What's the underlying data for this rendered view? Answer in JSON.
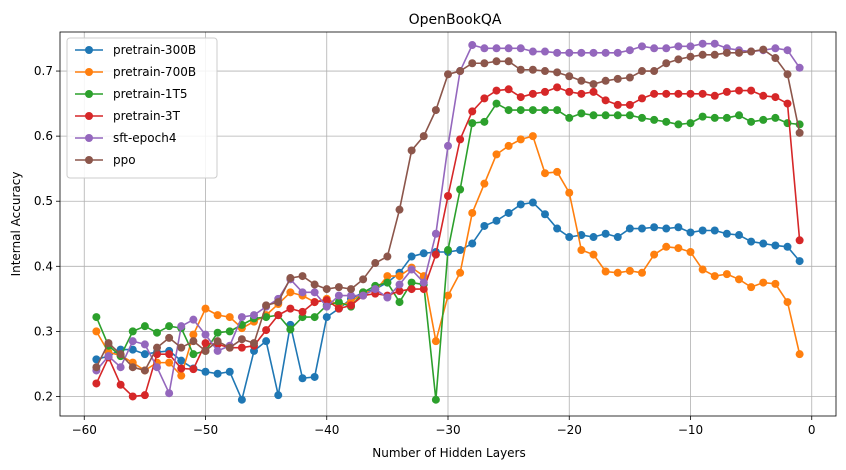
{
  "chart_data": {
    "type": "line",
    "title": "OpenBookQA",
    "xlabel": "Number of Hidden Layers",
    "ylabel": "Internal Accuracy",
    "xlim": [
      -62,
      2
    ],
    "ylim": [
      0.17,
      0.76
    ],
    "xticks": [
      -60,
      -50,
      -40,
      -30,
      -20,
      -10,
      0
    ],
    "yticks": [
      0.2,
      0.3,
      0.4,
      0.5,
      0.6,
      0.7
    ],
    "grid": true,
    "legend_position": "top-left",
    "x": [
      -59,
      -58,
      -57,
      -56,
      -55,
      -54,
      -53,
      -52,
      -51,
      -50,
      -49,
      -48,
      -47,
      -46,
      -45,
      -44,
      -43,
      -42,
      -41,
      -40,
      -39,
      -38,
      -37,
      -36,
      -35,
      -34,
      -33,
      -32,
      -31,
      -30,
      -29,
      -28,
      -27,
      -26,
      -25,
      -24,
      -23,
      -22,
      -21,
      -20,
      -19,
      -18,
      -17,
      -16,
      -15,
      -14,
      -13,
      -12,
      -11,
      -10,
      -9,
      -8,
      -7,
      -6,
      -5,
      -4,
      -3,
      -2,
      -1
    ],
    "series": [
      {
        "name": "pretrain-300B",
        "color": "#1f77b4",
        "values": [
          0.257,
          0.262,
          0.272,
          0.272,
          0.265,
          0.268,
          0.27,
          0.255,
          0.243,
          0.238,
          0.235,
          0.238,
          0.195,
          0.27,
          0.285,
          0.202,
          0.31,
          0.228,
          0.23,
          0.322,
          0.335,
          0.35,
          0.36,
          0.365,
          0.375,
          0.39,
          0.415,
          0.42,
          0.422,
          0.422,
          0.425,
          0.435,
          0.462,
          0.47,
          0.482,
          0.495,
          0.498,
          0.48,
          0.458,
          0.445,
          0.448,
          0.445,
          0.45,
          0.445,
          0.458,
          0.458,
          0.46,
          0.458,
          0.46,
          0.452,
          0.455,
          0.455,
          0.45,
          0.448,
          0.438,
          0.435,
          0.432,
          0.43,
          0.408
        ]
      },
      {
        "name": "pretrain-700B",
        "color": "#ff7f0e",
        "values": [
          0.3,
          0.268,
          0.263,
          0.252,
          0.24,
          0.252,
          0.252,
          0.232,
          0.295,
          0.335,
          0.325,
          0.322,
          0.305,
          0.315,
          0.325,
          0.342,
          0.36,
          0.355,
          0.345,
          0.35,
          0.34,
          0.345,
          0.36,
          0.362,
          0.385,
          0.385,
          0.398,
          0.385,
          0.285,
          0.355,
          0.39,
          0.482,
          0.527,
          0.572,
          0.585,
          0.595,
          0.6,
          0.543,
          0.545,
          0.513,
          0.425,
          0.418,
          0.392,
          0.39,
          0.393,
          0.39,
          0.418,
          0.43,
          0.428,
          0.422,
          0.395,
          0.385,
          0.388,
          0.38,
          0.368,
          0.375,
          0.373,
          0.345,
          0.265
        ]
      },
      {
        "name": "pretrain-1T5",
        "color": "#2ca02c",
        "values": [
          0.322,
          0.278,
          0.262,
          0.3,
          0.308,
          0.298,
          0.308,
          0.305,
          0.265,
          0.27,
          0.298,
          0.3,
          0.31,
          0.32,
          0.322,
          0.325,
          0.303,
          0.322,
          0.322,
          0.34,
          0.345,
          0.338,
          0.36,
          0.37,
          0.375,
          0.345,
          0.375,
          0.372,
          0.195,
          0.425,
          0.518,
          0.62,
          0.622,
          0.65,
          0.64,
          0.64,
          0.64,
          0.64,
          0.64,
          0.628,
          0.635,
          0.632,
          0.632,
          0.632,
          0.632,
          0.628,
          0.625,
          0.622,
          0.618,
          0.62,
          0.63,
          0.628,
          0.628,
          0.632,
          0.622,
          0.625,
          0.628,
          0.62,
          0.618
        ]
      },
      {
        "name": "pretrain-3T",
        "color": "#d62728",
        "values": [
          0.22,
          0.26,
          0.218,
          0.2,
          0.202,
          0.265,
          0.265,
          0.243,
          0.242,
          0.282,
          0.28,
          0.275,
          0.275,
          0.278,
          0.302,
          0.325,
          0.335,
          0.33,
          0.345,
          0.348,
          0.335,
          0.34,
          0.355,
          0.358,
          0.355,
          0.362,
          0.365,
          0.365,
          0.418,
          0.508,
          0.595,
          0.638,
          0.658,
          0.67,
          0.672,
          0.66,
          0.665,
          0.668,
          0.675,
          0.668,
          0.665,
          0.668,
          0.655,
          0.648,
          0.648,
          0.658,
          0.665,
          0.665,
          0.665,
          0.665,
          0.665,
          0.662,
          0.668,
          0.67,
          0.67,
          0.662,
          0.66,
          0.65,
          0.44
        ]
      },
      {
        "name": "sft-epoch4",
        "color": "#9467bd",
        "values": [
          0.24,
          0.262,
          0.245,
          0.285,
          0.28,
          0.245,
          0.205,
          0.308,
          0.318,
          0.295,
          0.27,
          0.278,
          0.322,
          0.325,
          0.338,
          0.35,
          0.38,
          0.36,
          0.36,
          0.338,
          0.355,
          0.355,
          0.355,
          0.365,
          0.352,
          0.372,
          0.395,
          0.375,
          0.45,
          0.585,
          0.7,
          0.74,
          0.735,
          0.735,
          0.735,
          0.735,
          0.73,
          0.73,
          0.728,
          0.728,
          0.728,
          0.728,
          0.728,
          0.728,
          0.732,
          0.738,
          0.735,
          0.735,
          0.738,
          0.738,
          0.742,
          0.742,
          0.735,
          0.732,
          0.73,
          0.732,
          0.735,
          0.732,
          0.705
        ]
      },
      {
        "name": "ppo",
        "color": "#8c564b",
        "values": [
          0.245,
          0.282,
          0.265,
          0.245,
          0.24,
          0.275,
          0.29,
          0.275,
          0.285,
          0.27,
          0.285,
          0.275,
          0.288,
          0.282,
          0.34,
          0.345,
          0.382,
          0.385,
          0.372,
          0.365,
          0.368,
          0.365,
          0.38,
          0.405,
          0.415,
          0.487,
          0.578,
          0.6,
          0.64,
          0.695,
          0.7,
          0.712,
          0.712,
          0.715,
          0.715,
          0.702,
          0.702,
          0.7,
          0.698,
          0.692,
          0.685,
          0.68,
          0.685,
          0.688,
          0.69,
          0.7,
          0.7,
          0.712,
          0.718,
          0.722,
          0.725,
          0.725,
          0.728,
          0.728,
          0.73,
          0.733,
          0.72,
          0.695,
          0.605
        ]
      }
    ]
  }
}
